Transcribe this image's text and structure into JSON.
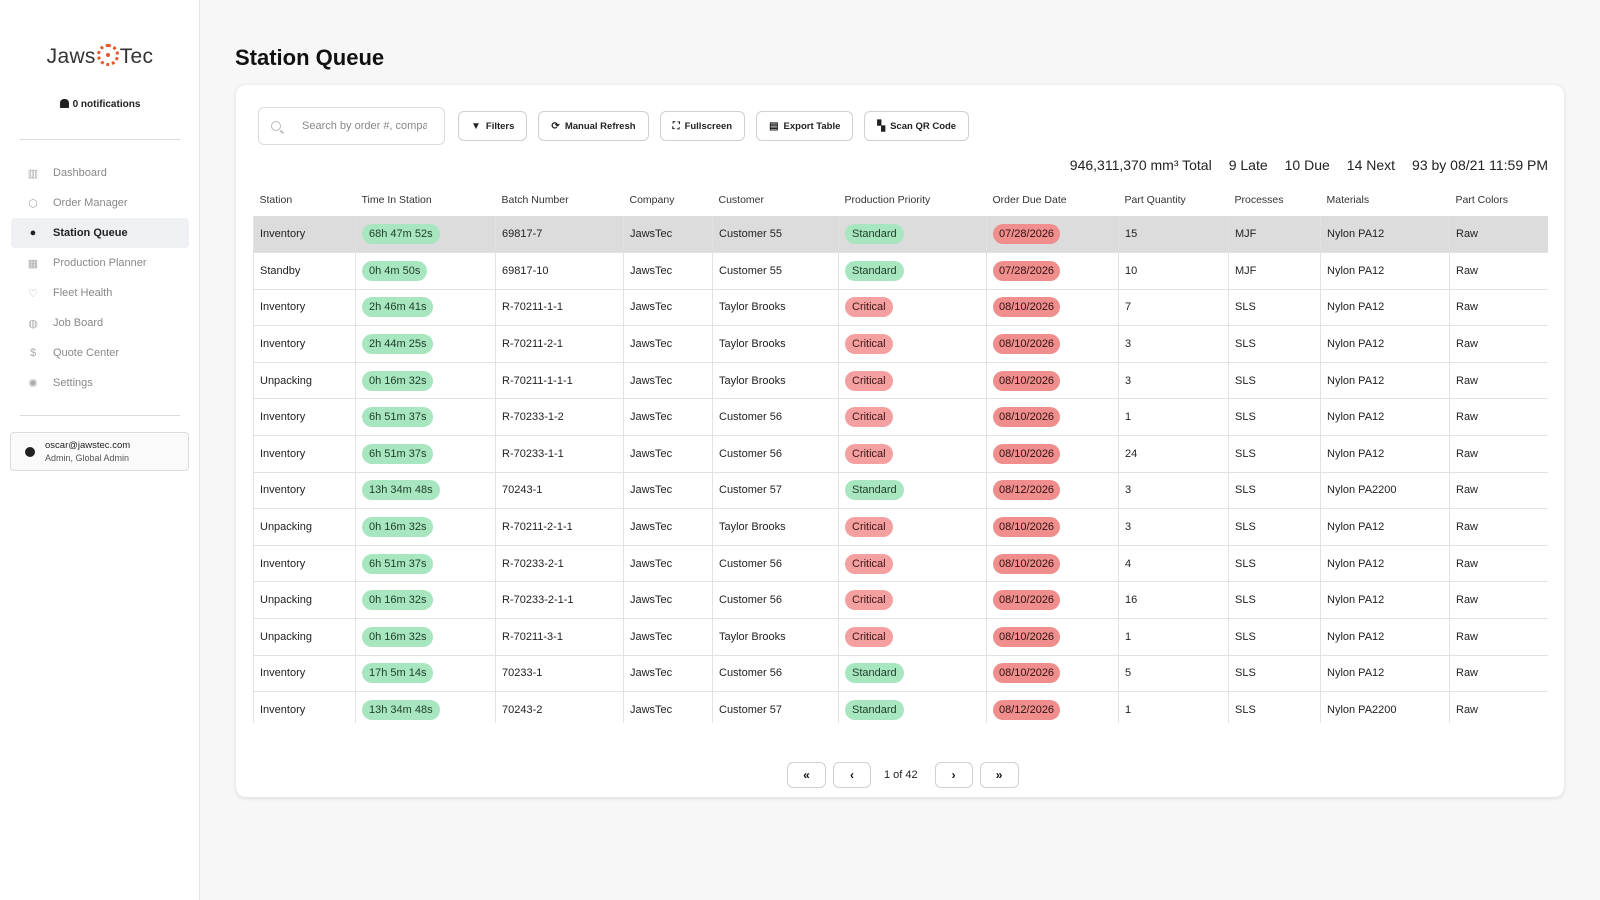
{
  "brand": {
    "name_left": "Jaws",
    "name_right": "Tec",
    "accent": "#e2572b"
  },
  "notifications": {
    "label": "0 notifications"
  },
  "nav": [
    {
      "label": "Dashboard",
      "icon": "bar-chart-icon",
      "glyph": "▥",
      "active": false
    },
    {
      "label": "Order Manager",
      "icon": "cubes-icon",
      "glyph": "⬡",
      "active": false
    },
    {
      "label": "Station Queue",
      "icon": "stopwatch-icon",
      "glyph": "●",
      "active": true
    },
    {
      "label": "Production Planner",
      "icon": "calendar-icon",
      "glyph": "▦",
      "active": false
    },
    {
      "label": "Fleet Health",
      "icon": "heart-pulse-icon",
      "glyph": "♡",
      "active": false
    },
    {
      "label": "Job Board",
      "icon": "globe-icon",
      "glyph": "◍",
      "active": false
    },
    {
      "label": "Quote Center",
      "icon": "dollar-icon",
      "glyph": "$",
      "active": false
    },
    {
      "label": "Settings",
      "icon": "gear-icon",
      "glyph": "✺",
      "active": false
    }
  ],
  "user": {
    "email": "oscar@jawstec.com",
    "role": "Admin, Global Admin"
  },
  "page": {
    "title": "Station Queue"
  },
  "toolbar": {
    "search_placeholder": "Search by order #, company",
    "filters": "Filters",
    "refresh": "Manual Refresh",
    "fullscreen": "Fullscreen",
    "export": "Export Table",
    "scan": "Scan QR Code"
  },
  "summary": {
    "total": "946,311,370 mm³ Total",
    "late": "9 Late",
    "due": "10 Due",
    "next": "14 Next",
    "by": "93 by 08/21 11:59 PM"
  },
  "table": {
    "columns": [
      "Station",
      "Time In Station",
      "Batch Number",
      "Company",
      "Customer",
      "Production Priority",
      "Order Due Date",
      "Part Quantity",
      "Processes",
      "Materials",
      "Part Colors"
    ],
    "rows": [
      {
        "station": "Inventory",
        "time": "68h 47m 52s",
        "batch": "69817-7",
        "company": "JawsTec",
        "customer": "Customer 55",
        "priority": "Standard",
        "due": "07/28/2026",
        "qty": "15",
        "process": "MJF",
        "material": "Nylon PA12",
        "color": "Raw"
      },
      {
        "station": "Standby",
        "time": "0h 4m 50s",
        "batch": "69817-10",
        "company": "JawsTec",
        "customer": "Customer 55",
        "priority": "Standard",
        "due": "07/28/2026",
        "qty": "10",
        "process": "MJF",
        "material": "Nylon PA12",
        "color": "Raw"
      },
      {
        "station": "Inventory",
        "time": "2h 46m 41s",
        "batch": "R-70211-1-1",
        "company": "JawsTec",
        "customer": "Taylor Brooks",
        "priority": "Critical",
        "due": "08/10/2026",
        "qty": "7",
        "process": "SLS",
        "material": "Nylon PA12",
        "color": "Raw"
      },
      {
        "station": "Inventory",
        "time": "2h 44m 25s",
        "batch": "R-70211-2-1",
        "company": "JawsTec",
        "customer": "Taylor Brooks",
        "priority": "Critical",
        "due": "08/10/2026",
        "qty": "3",
        "process": "SLS",
        "material": "Nylon PA12",
        "color": "Raw"
      },
      {
        "station": "Unpacking",
        "time": "0h 16m 32s",
        "batch": "R-70211-1-1-1",
        "company": "JawsTec",
        "customer": "Taylor Brooks",
        "priority": "Critical",
        "due": "08/10/2026",
        "qty": "3",
        "process": "SLS",
        "material": "Nylon PA12",
        "color": "Raw"
      },
      {
        "station": "Inventory",
        "time": "6h 51m 37s",
        "batch": "R-70233-1-2",
        "company": "JawsTec",
        "customer": "Customer 56",
        "priority": "Critical",
        "due": "08/10/2026",
        "qty": "1",
        "process": "SLS",
        "material": "Nylon PA12",
        "color": "Raw"
      },
      {
        "station": "Inventory",
        "time": "6h 51m 37s",
        "batch": "R-70233-1-1",
        "company": "JawsTec",
        "customer": "Customer 56",
        "priority": "Critical",
        "due": "08/10/2026",
        "qty": "24",
        "process": "SLS",
        "material": "Nylon PA12",
        "color": "Raw"
      },
      {
        "station": "Inventory",
        "time": "13h 34m 48s",
        "batch": "70243-1",
        "company": "JawsTec",
        "customer": "Customer 57",
        "priority": "Standard",
        "due": "08/12/2026",
        "qty": "3",
        "process": "SLS",
        "material": "Nylon PA2200",
        "color": "Raw"
      },
      {
        "station": "Unpacking",
        "time": "0h 16m 32s",
        "batch": "R-70211-2-1-1",
        "company": "JawsTec",
        "customer": "Taylor Brooks",
        "priority": "Critical",
        "due": "08/10/2026",
        "qty": "3",
        "process": "SLS",
        "material": "Nylon PA12",
        "color": "Raw"
      },
      {
        "station": "Inventory",
        "time": "6h 51m 37s",
        "batch": "R-70233-2-1",
        "company": "JawsTec",
        "customer": "Customer 56",
        "priority": "Critical",
        "due": "08/10/2026",
        "qty": "4",
        "process": "SLS",
        "material": "Nylon PA12",
        "color": "Raw"
      },
      {
        "station": "Unpacking",
        "time": "0h 16m 32s",
        "batch": "R-70233-2-1-1",
        "company": "JawsTec",
        "customer": "Customer 56",
        "priority": "Critical",
        "due": "08/10/2026",
        "qty": "16",
        "process": "SLS",
        "material": "Nylon PA12",
        "color": "Raw"
      },
      {
        "station": "Unpacking",
        "time": "0h 16m 32s",
        "batch": "R-70211-3-1",
        "company": "JawsTec",
        "customer": "Taylor Brooks",
        "priority": "Critical",
        "due": "08/10/2026",
        "qty": "1",
        "process": "SLS",
        "material": "Nylon PA12",
        "color": "Raw"
      },
      {
        "station": "Inventory",
        "time": "17h 5m 14s",
        "batch": "70233-1",
        "company": "JawsTec",
        "customer": "Customer 56",
        "priority": "Standard",
        "due": "08/10/2026",
        "qty": "5",
        "process": "SLS",
        "material": "Nylon PA12",
        "color": "Raw"
      },
      {
        "station": "Inventory",
        "time": "13h 34m 48s",
        "batch": "70243-2",
        "company": "JawsTec",
        "customer": "Customer 57",
        "priority": "Standard",
        "due": "08/12/2026",
        "qty": "1",
        "process": "SLS",
        "material": "Nylon PA2200",
        "color": "Raw"
      }
    ]
  },
  "pagination": {
    "label": "1 of 42"
  },
  "colors": {
    "green_pill": "#a8e6bf",
    "critical_pill": "#f4a0a0",
    "date_pill": "#f08e8e",
    "selected_row": "#dcdcdc"
  }
}
